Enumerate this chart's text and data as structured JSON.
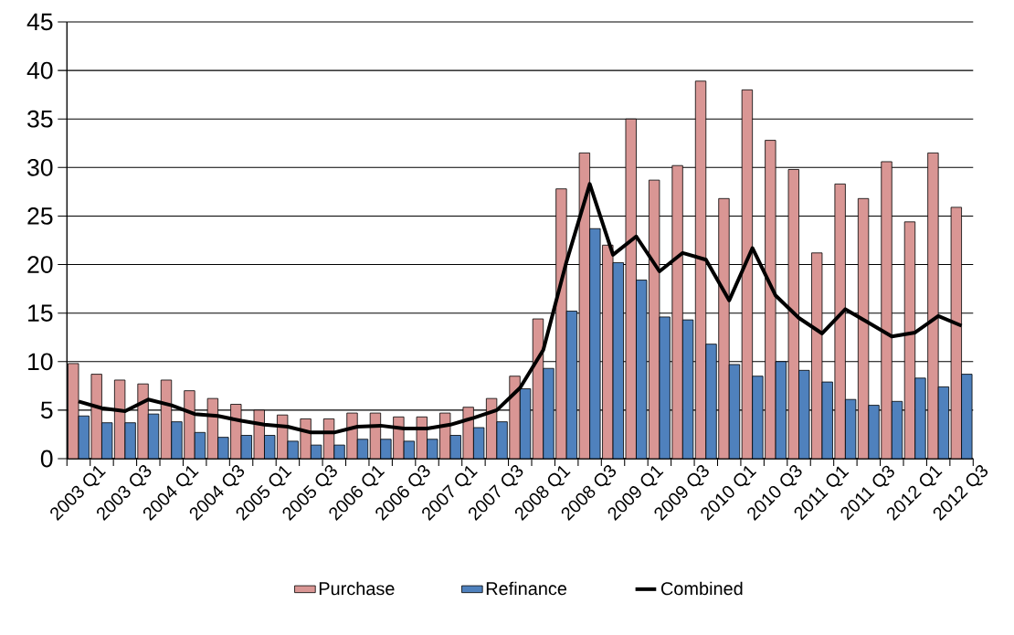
{
  "chart_data": {
    "type": "bar",
    "categories": [
      "2003 Q1",
      null,
      "2003 Q3",
      null,
      "2004 Q1",
      null,
      "2004 Q3",
      null,
      "2005 Q1",
      null,
      "2005 Q3",
      null,
      "2006 Q1",
      null,
      "2006 Q3",
      null,
      "2007 Q1",
      null,
      "2007 Q3",
      null,
      "2008 Q1",
      null,
      "2008 Q3",
      null,
      "2009 Q1",
      null,
      "2009 Q3",
      null,
      "2010 Q1",
      null,
      "2010 Q3",
      null,
      "2011 Q1",
      null,
      "2011 Q3",
      null,
      "2012 Q1",
      null,
      "2012 Q3"
    ],
    "series": [
      {
        "name": "Purchase",
        "color": "#d99694",
        "values": [
          9.8,
          8.7,
          8.1,
          7.7,
          8.1,
          7.0,
          6.2,
          5.6,
          5.0,
          4.5,
          4.1,
          4.1,
          4.7,
          4.7,
          4.3,
          4.3,
          4.7,
          5.3,
          6.2,
          8.5,
          14.4,
          27.8,
          31.5,
          22.0,
          35.0,
          28.7,
          30.2,
          38.9,
          26.8,
          38.0,
          32.8,
          29.8,
          21.2,
          28.3,
          26.8,
          30.6,
          24.4,
          31.5,
          25.9
        ]
      },
      {
        "name": "Refinance",
        "color": "#4f81bd",
        "values": [
          4.4,
          3.7,
          3.7,
          4.6,
          3.8,
          2.7,
          2.2,
          2.4,
          2.4,
          1.8,
          1.4,
          1.4,
          2.0,
          2.0,
          1.8,
          2.0,
          2.4,
          3.2,
          3.8,
          7.2,
          9.3,
          15.2,
          23.7,
          20.2,
          18.4,
          14.6,
          14.3,
          11.8,
          9.7,
          8.5,
          10.0,
          9.1,
          7.9,
          6.1,
          5.5,
          5.9,
          8.3,
          7.4,
          8.7
        ]
      },
      {
        "name": "Combined",
        "type": "line",
        "color": "#000000",
        "values": [
          5.9,
          5.2,
          4.9,
          6.1,
          5.5,
          4.6,
          4.4,
          3.9,
          3.5,
          3.3,
          2.7,
          2.7,
          3.3,
          3.4,
          3.1,
          3.1,
          3.5,
          4.2,
          5.0,
          7.3,
          11.2,
          20.3,
          28.3,
          21.0,
          22.9,
          19.3,
          21.2,
          20.5,
          16.3,
          21.7,
          16.8,
          14.5,
          12.9,
          15.4,
          14.0,
          12.6,
          13.0,
          14.7,
          13.7
        ]
      }
    ],
    "ylim": [
      0,
      45
    ],
    "yticks": [
      0,
      5,
      10,
      15,
      20,
      25,
      30,
      35,
      40,
      45
    ],
    "grid": "y",
    "legend": "bottom"
  }
}
